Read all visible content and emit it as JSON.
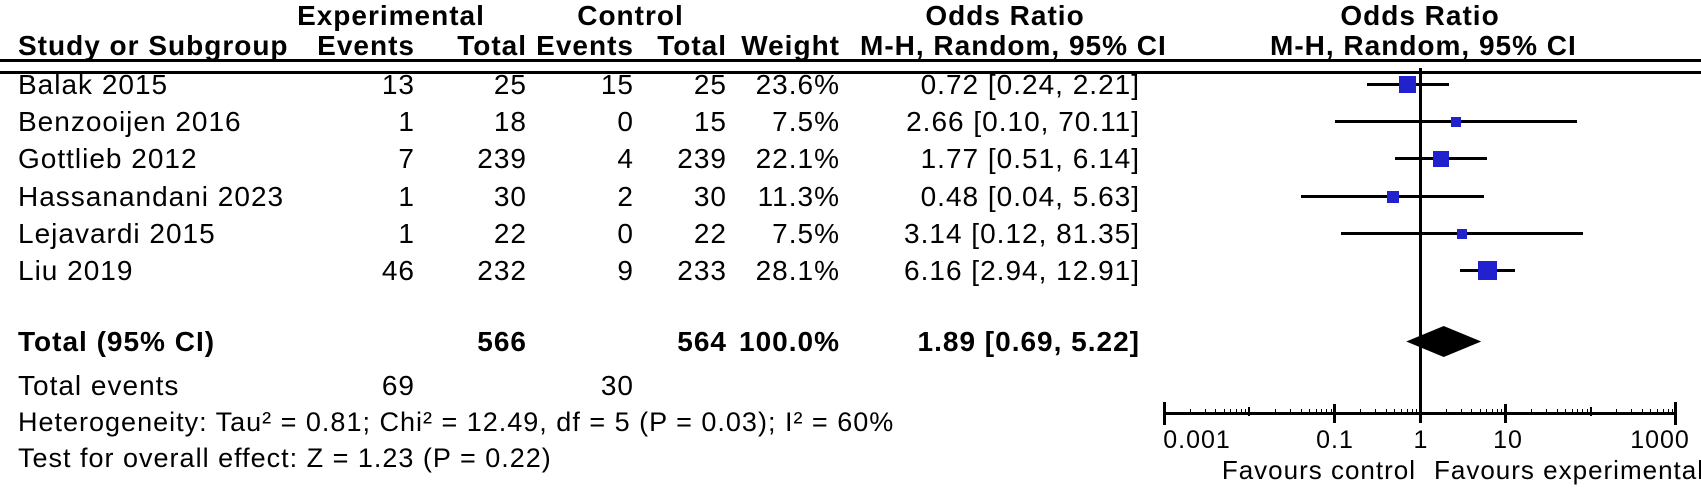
{
  "header": {
    "col_study": "Study or Subgroup",
    "group_experimental": "Experimental",
    "group_control": "Control",
    "col_exp_events": "Events",
    "col_exp_total": "Total",
    "col_ctrl_events": "Events",
    "col_ctrl_total": "Total",
    "col_weight": "Weight",
    "or_text_title": "Odds Ratio",
    "or_text_subtitle": "M-H, Random, 95% CI",
    "or_plot_title": "Odds Ratio",
    "or_plot_subtitle": "M-H, Random, 95% CI"
  },
  "rows": [
    {
      "study": "Balak 2015",
      "exp_events": "13",
      "exp_total": "25",
      "ctrl_events": "15",
      "ctrl_total": "25",
      "weight": "23.6%",
      "or_ci": "0.72 [0.24, 2.21]"
    },
    {
      "study": "Benzooijen 2016",
      "exp_events": "1",
      "exp_total": "18",
      "ctrl_events": "0",
      "ctrl_total": "15",
      "weight": "7.5%",
      "or_ci": "2.66 [0.10, 70.11]"
    },
    {
      "study": "Gottlieb 2012",
      "exp_events": "7",
      "exp_total": "239",
      "ctrl_events": "4",
      "ctrl_total": "239",
      "weight": "22.1%",
      "or_ci": "1.77 [0.51, 6.14]"
    },
    {
      "study": "Hassanandani 2023",
      "exp_events": "1",
      "exp_total": "30",
      "ctrl_events": "2",
      "ctrl_total": "30",
      "weight": "11.3%",
      "or_ci": "0.48 [0.04, 5.63]"
    },
    {
      "study": "Lejavardi 2015",
      "exp_events": "1",
      "exp_total": "22",
      "ctrl_events": "0",
      "ctrl_total": "22",
      "weight": "7.5%",
      "or_ci": "3.14 [0.12, 81.35]"
    },
    {
      "study": "Liu 2019",
      "exp_events": "46",
      "exp_total": "232",
      "ctrl_events": "9",
      "ctrl_total": "233",
      "weight": "28.1%",
      "or_ci": "6.16 [2.94, 12.91]"
    }
  ],
  "totals": {
    "label": "Total (95% CI)",
    "exp_total": "566",
    "ctrl_total": "564",
    "weight": "100.0%",
    "or_ci": "1.89 [0.69, 5.22]",
    "total_events_label": "Total events",
    "exp_events": "69",
    "ctrl_events": "30"
  },
  "footer": {
    "heterogeneity": "Heterogeneity: Tau² = 0.81; Chi² = 12.49, df = 5 (P = 0.03); I² = 60%",
    "overall_effect": "Test for overall effect: Z = 1.23 (P = 0.22)"
  },
  "axis": {
    "tick_labels": [
      "0.001",
      "0.1",
      "1",
      "10",
      "1000"
    ],
    "favours_left": "Favours control",
    "favours_right": "Favours experimental"
  },
  "colors": {
    "marker_blue": "#2121CE",
    "diamond_black": "#000000",
    "line_black": "#000000"
  },
  "chart_data": {
    "type": "scatter",
    "subtype": "forest-plot",
    "effect_measure": "Odds Ratio, M-H, Random, 95% CI",
    "x_scale": "log",
    "x_range": [
      0.001,
      1000
    ],
    "x_ticks": [
      0.001,
      0.1,
      1,
      10,
      1000
    ],
    "null_line": 1,
    "studies": [
      {
        "name": "Balak 2015",
        "or": 0.72,
        "ci_low": 0.24,
        "ci_high": 2.21,
        "weight_pct": 23.6
      },
      {
        "name": "Benzooijen 2016",
        "or": 2.66,
        "ci_low": 0.1,
        "ci_high": 70.11,
        "weight_pct": 7.5
      },
      {
        "name": "Gottlieb 2012",
        "or": 1.77,
        "ci_low": 0.51,
        "ci_high": 6.14,
        "weight_pct": 22.1
      },
      {
        "name": "Hassanandani 2023",
        "or": 0.48,
        "ci_low": 0.04,
        "ci_high": 5.63,
        "weight_pct": 11.3
      },
      {
        "name": "Lejavardi 2015",
        "or": 3.14,
        "ci_low": 0.12,
        "ci_high": 81.35,
        "weight_pct": 7.5
      },
      {
        "name": "Liu 2019",
        "or": 6.16,
        "ci_low": 2.94,
        "ci_high": 12.91,
        "weight_pct": 28.1
      }
    ],
    "total": {
      "name": "Total (95% CI)",
      "or": 1.89,
      "ci_low": 0.69,
      "ci_high": 5.22,
      "weight_pct": 100.0
    }
  }
}
